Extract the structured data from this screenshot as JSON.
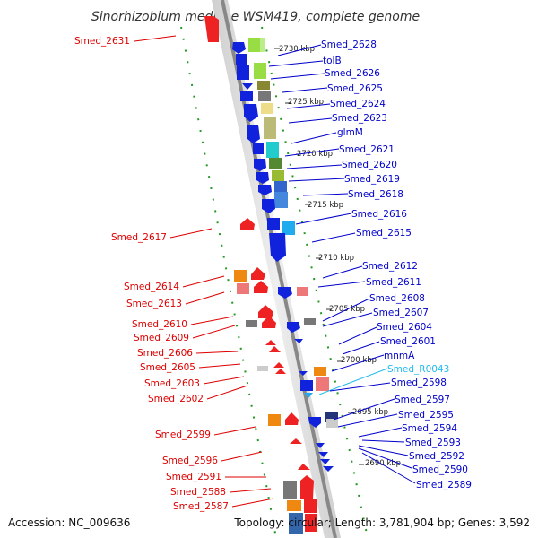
{
  "title": "Sinorhizobium medicae WSM419, complete genome",
  "footer": {
    "accession": "Accession: NC_009636",
    "topology": "Topology: circular; Length: 3,781,904 bp; Genes: 3,592"
  },
  "colors": {
    "left_label": "#dd0000",
    "right_label": "#0000cc",
    "rna_label": "#22bbee",
    "backbone": "#888888"
  },
  "kbp_ticks": [
    "2730 kbp",
    "2725 kbp",
    "2720 kbp",
    "2715 kbp",
    "2710 kbp",
    "2705 kbp",
    "2700 kbp",
    "2695 kbp",
    "2690 kbp"
  ],
  "right_genes": [
    "Smed_2628",
    "tolB",
    "Smed_2626",
    "Smed_2625",
    "Smed_2624",
    "Smed_2623",
    "glmM",
    "Smed_2621",
    "Smed_2620",
    "Smed_2619",
    "Smed_2618",
    "Smed_2616",
    "Smed_2615",
    "Smed_2612",
    "Smed_2611",
    "Smed_2608",
    "Smed_2607",
    "Smed_2604",
    "Smed_2601",
    "mnmA",
    "Smed_R0043",
    "Smed_2598",
    "Smed_2597",
    "Smed_2595",
    "Smed_2594",
    "Smed_2593",
    "Smed_2592",
    "Smed_2590",
    "Smed_2589"
  ],
  "left_genes": [
    "Smed_2631",
    "Smed_2617",
    "Smed_2614",
    "Smed_2613",
    "Smed_2610",
    "Smed_2609",
    "Smed_2606",
    "Smed_2605",
    "Smed_2603",
    "Smed_2602",
    "Smed_2599",
    "Smed_2596",
    "Smed_2591",
    "Smed_2588",
    "Smed_2587"
  ]
}
